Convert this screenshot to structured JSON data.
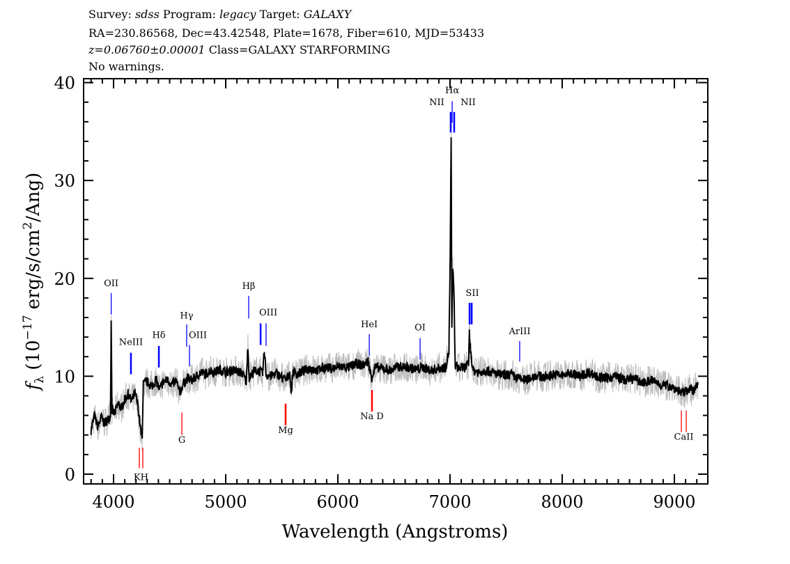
{
  "header": {
    "line1": {
      "survey_label": "Survey:",
      "survey": "sdss",
      "program_label": "Program:",
      "program": "legacy",
      "target_label": "Target:",
      "target": "GALAXY"
    },
    "line2": "RA=230.86568, Dec=43.42548, Plate=1678, Fiber=610, MJD=53433",
    "line3": {
      "redshift": "z=0.06760±0.00001",
      "class": "Class=GALAXY STARFORMING"
    },
    "line4": "No warnings."
  },
  "chart_data": {
    "type": "line",
    "xlabel": "Wavelength (Angstroms)",
    "ylabel": "f_λ (10^-17 erg/s/cm^2/Ang)",
    "ylabel_parts": {
      "f": "f",
      "sub": "λ",
      "pre": " (10",
      "exp1": "−17",
      "mid": " erg/s/cm",
      "exp2": "2",
      "post": "/Ang)"
    },
    "xlim": [
      3733,
      9298
    ],
    "ylim": [
      -1.0,
      40.4
    ],
    "xticks": [
      4000,
      5000,
      6000,
      7000,
      8000,
      9000
    ],
    "yticks": [
      0,
      10,
      20,
      30,
      40
    ],
    "x_minor_step": 100,
    "y_minor_step": 2,
    "grid": false,
    "colors": {
      "flux": "#000000",
      "error_band": "#bbbbbb",
      "emission": "#0000ff",
      "absorption": "#ff0000"
    },
    "series": [
      {
        "points": [
          [
            3800,
            4.5
          ],
          [
            3830,
            6
          ],
          [
            3860,
            4.8
          ],
          [
            3890,
            5.8
          ],
          [
            3920,
            5.2
          ],
          [
            3950,
            5.6
          ],
          [
            3972,
            6
          ],
          [
            3979,
            15.5
          ],
          [
            3986,
            6.5
          ],
          [
            4010,
            6.2
          ],
          [
            4040,
            7.2
          ],
          [
            4070,
            6.8
          ],
          [
            4100,
            7.6
          ],
          [
            4130,
            8.2
          ],
          [
            4160,
            7.4
          ],
          [
            4190,
            8.3
          ],
          [
            4215,
            7.2
          ],
          [
            4232,
            5.5
          ],
          [
            4245,
            4.2
          ],
          [
            4255,
            3.6
          ],
          [
            4265,
            9.2
          ],
          [
            4300,
            9.4
          ],
          [
            4340,
            9.0
          ],
          [
            4380,
            9.6
          ],
          [
            4410,
            8.6
          ],
          [
            4440,
            9.4
          ],
          [
            4480,
            9.6
          ],
          [
            4520,
            9.2
          ],
          [
            4560,
            9.5
          ],
          [
            4590,
            8.3
          ],
          [
            4620,
            9.2
          ],
          [
            4660,
            9.8
          ],
          [
            4700,
            9.6
          ],
          [
            4740,
            10.0
          ],
          [
            4780,
            10.4
          ],
          [
            4820,
            10.2
          ],
          [
            4860,
            10.6
          ],
          [
            4900,
            10.4
          ],
          [
            4950,
            10.7
          ],
          [
            5000,
            10.4
          ],
          [
            5050,
            10.6
          ],
          [
            5100,
            10.5
          ],
          [
            5150,
            10.3
          ],
          [
            5185,
            9.4
          ],
          [
            5196,
            13.2
          ],
          [
            5210,
            9.8
          ],
          [
            5250,
            10.5
          ],
          [
            5290,
            10.6
          ],
          [
            5330,
            10.3
          ],
          [
            5345,
            12.6
          ],
          [
            5360,
            10.2
          ],
          [
            5400,
            10.0
          ],
          [
            5450,
            10.3
          ],
          [
            5500,
            9.9
          ],
          [
            5540,
            9.6
          ],
          [
            5570,
            10.4
          ],
          [
            5585,
            8.3
          ],
          [
            5600,
            10.5
          ],
          [
            5640,
            10.2
          ],
          [
            5700,
            10.6
          ],
          [
            5760,
            10.8
          ],
          [
            5820,
            10.6
          ],
          [
            5880,
            10.9
          ],
          [
            5950,
            10.8
          ],
          [
            6020,
            11.0
          ],
          [
            6100,
            10.9
          ],
          [
            6160,
            11.3
          ],
          [
            6220,
            11.1
          ],
          [
            6270,
            11.5
          ],
          [
            6300,
            9.8
          ],
          [
            6330,
            10.9
          ],
          [
            6400,
            10.8
          ],
          [
            6470,
            10.6
          ],
          [
            6540,
            11.0
          ],
          [
            6620,
            10.9
          ],
          [
            6700,
            10.7
          ],
          [
            6760,
            10.9
          ],
          [
            6830,
            10.6
          ],
          [
            6900,
            10.8
          ],
          [
            6960,
            10.9
          ],
          [
            6990,
            12.5
          ],
          [
            7000,
            21.0
          ],
          [
            7010,
            34.1
          ],
          [
            7016,
            15.0
          ],
          [
            7024,
            20.7
          ],
          [
            7034,
            19.2
          ],
          [
            7045,
            11.2
          ],
          [
            7080,
            10.8
          ],
          [
            7130,
            10.9
          ],
          [
            7165,
            11.2
          ],
          [
            7172,
            14.5
          ],
          [
            7182,
            12.8
          ],
          [
            7190,
            12.0
          ],
          [
            7205,
            10.6
          ],
          [
            7260,
            10.4
          ],
          [
            7320,
            10.6
          ],
          [
            7400,
            10.3
          ],
          [
            7480,
            10.1
          ],
          [
            7540,
            10.2
          ],
          [
            7600,
            9.8
          ],
          [
            7680,
            9.6
          ],
          [
            7760,
            10.1
          ],
          [
            7840,
            9.9
          ],
          [
            7920,
            10.2
          ],
          [
            8000,
            10.1
          ],
          [
            8080,
            10.3
          ],
          [
            8160,
            10.0
          ],
          [
            8240,
            10.4
          ],
          [
            8320,
            9.9
          ],
          [
            8400,
            9.8
          ],
          [
            8480,
            10.0
          ],
          [
            8560,
            9.6
          ],
          [
            8640,
            9.8
          ],
          [
            8720,
            9.3
          ],
          [
            8800,
            9.6
          ],
          [
            8880,
            9.1
          ],
          [
            8960,
            9.0
          ],
          [
            9030,
            8.6
          ],
          [
            9080,
            8.2
          ],
          [
            9130,
            8.8
          ],
          [
            9170,
            8.4
          ],
          [
            9210,
            9.2
          ]
        ]
      }
    ],
    "line_markers": [
      {
        "label": "OII",
        "wavelength": 3979,
        "type": "emission",
        "y": [
          16.3,
          18.5
        ],
        "label_y": 19.2,
        "thick": false
      },
      {
        "label": "NeIII",
        "wavelength": 4155,
        "type": "emission",
        "y": [
          10.2,
          12.4
        ],
        "label_y": 13.2,
        "thick": true
      },
      {
        "label": "Hδ",
        "wavelength": 4404,
        "type": "emission",
        "y": [
          10.9,
          13.1
        ],
        "label_y": 13.9,
        "thick": true
      },
      {
        "label": "Hγ",
        "wavelength": 4652,
        "type": "emission",
        "y": [
          13.0,
          15.3
        ],
        "label_y": 15.9,
        "thick": false
      },
      {
        "label": "OIII",
        "wavelength": 4677,
        "type": "emission",
        "y": [
          11.0,
          13.2
        ],
        "label_y": 13.9,
        "thick": false,
        "label_dx": 12
      },
      {
        "label": "Hβ",
        "wavelength": 5205,
        "type": "emission",
        "y": [
          15.9,
          18.2
        ],
        "label_y": 18.9,
        "thick": false
      },
      {
        "label": "OIII",
        "wavelength": 5311,
        "type": "emission",
        "y": [
          13.2,
          15.4
        ],
        "label_y": 16.2,
        "thick": true,
        "label_dx": 11
      },
      {
        "label": "",
        "wavelength": 5360,
        "type": "emission",
        "y": [
          13.1,
          15.4
        ],
        "thick": false
      },
      {
        "label": "HeI",
        "wavelength": 6280,
        "type": "emission",
        "y": [
          12.1,
          14.3
        ],
        "label_y": 15.0,
        "thick": false
      },
      {
        "label": "OI",
        "wavelength": 6733,
        "type": "emission",
        "y": [
          11.7,
          13.9
        ],
        "label_y": 14.7,
        "thick": false
      },
      {
        "label": "NII",
        "wavelength": 7006,
        "type": "emission",
        "y": [
          34.9,
          37.0
        ],
        "label_y": 37.7,
        "thick": true,
        "label_dx": -20
      },
      {
        "label": "Hα",
        "wavelength": 7019,
        "type": "emission",
        "y": [
          35.9,
          38.1
        ],
        "label_y": 38.9,
        "thick": false
      },
      {
        "label": "NII",
        "wavelength": 7037,
        "type": "emission",
        "y": [
          34.9,
          37.0
        ],
        "label_y": 37.7,
        "thick": true,
        "label_dx": 20
      },
      {
        "label": "SII",
        "wavelength": 7174,
        "type": "emission",
        "y": [
          15.3,
          17.5
        ],
        "label_y": 18.2,
        "thick": true,
        "label_dx": 4
      },
      {
        "label": "",
        "wavelength": 7193,
        "type": "emission",
        "y": [
          15.3,
          17.5
        ],
        "thick": true
      },
      {
        "label": "ArIII",
        "wavelength": 7621,
        "type": "emission",
        "y": [
          11.5,
          13.6
        ],
        "label_y": 14.3,
        "thick": false
      },
      {
        "label": "KH",
        "wavelength": 4245,
        "type": "absorption",
        "y": [
          0.6,
          2.7
        ],
        "label_y": -0.6,
        "thick": false,
        "marks": [
          4230,
          4261
        ]
      },
      {
        "label": "G",
        "wavelength": 4609,
        "type": "absorption",
        "y": [
          4.0,
          6.3
        ],
        "label_y": 3.2,
        "thick": false
      },
      {
        "label": "Mg",
        "wavelength": 5534,
        "type": "absorption",
        "y": [
          5.0,
          7.2
        ],
        "label_y": 4.2,
        "thick": true
      },
      {
        "label": "Na D",
        "wavelength": 6304,
        "type": "absorption",
        "y": [
          6.4,
          8.6
        ],
        "label_y": 5.6,
        "thick": true
      },
      {
        "label": "CaII",
        "wavelength": 9084,
        "type": "absorption",
        "y": [
          4.3,
          6.5
        ],
        "label_y": 3.5,
        "thick": false,
        "marks": [
          9062,
          9106
        ]
      }
    ]
  }
}
